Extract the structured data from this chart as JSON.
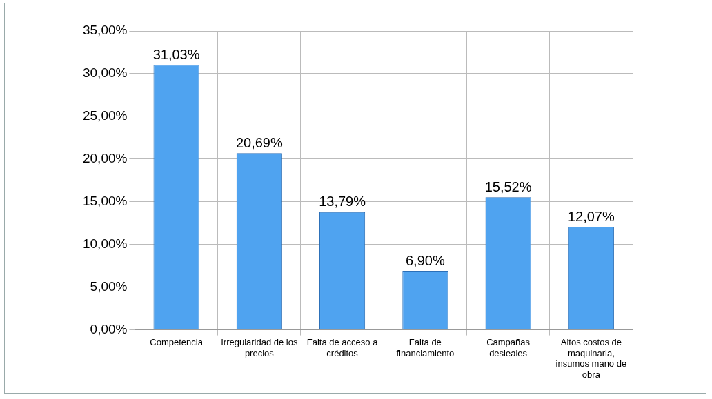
{
  "chart_data": {
    "type": "bar",
    "categories": [
      "Competencia",
      "Irregularidad de los precios",
      "Falta de acceso a créditos",
      "Falta de financiamiento",
      "Campañas desleales",
      "Altos costos de maquinaria, insumos mano de obra"
    ],
    "values": [
      31.03,
      20.69,
      13.79,
      6.9,
      15.52,
      12.07
    ],
    "value_labels": [
      "31,03%",
      "20,69%",
      "13,79%",
      "6,90%",
      "15,52%",
      "12,07%"
    ],
    "color": "#4fa3f0",
    "ylim": [
      0,
      35
    ],
    "yticks": [
      {
        "value": 0,
        "label": "0,00%"
      },
      {
        "value": 5,
        "label": "5,00%"
      },
      {
        "value": 10,
        "label": "10,00%"
      },
      {
        "value": 15,
        "label": "15,00%"
      },
      {
        "value": 20,
        "label": "20,00%"
      },
      {
        "value": 25,
        "label": "25,00%"
      },
      {
        "value": 30,
        "label": "30,00%"
      },
      {
        "value": 35,
        "label": "35,00%"
      }
    ],
    "grid": true,
    "legend": false
  }
}
